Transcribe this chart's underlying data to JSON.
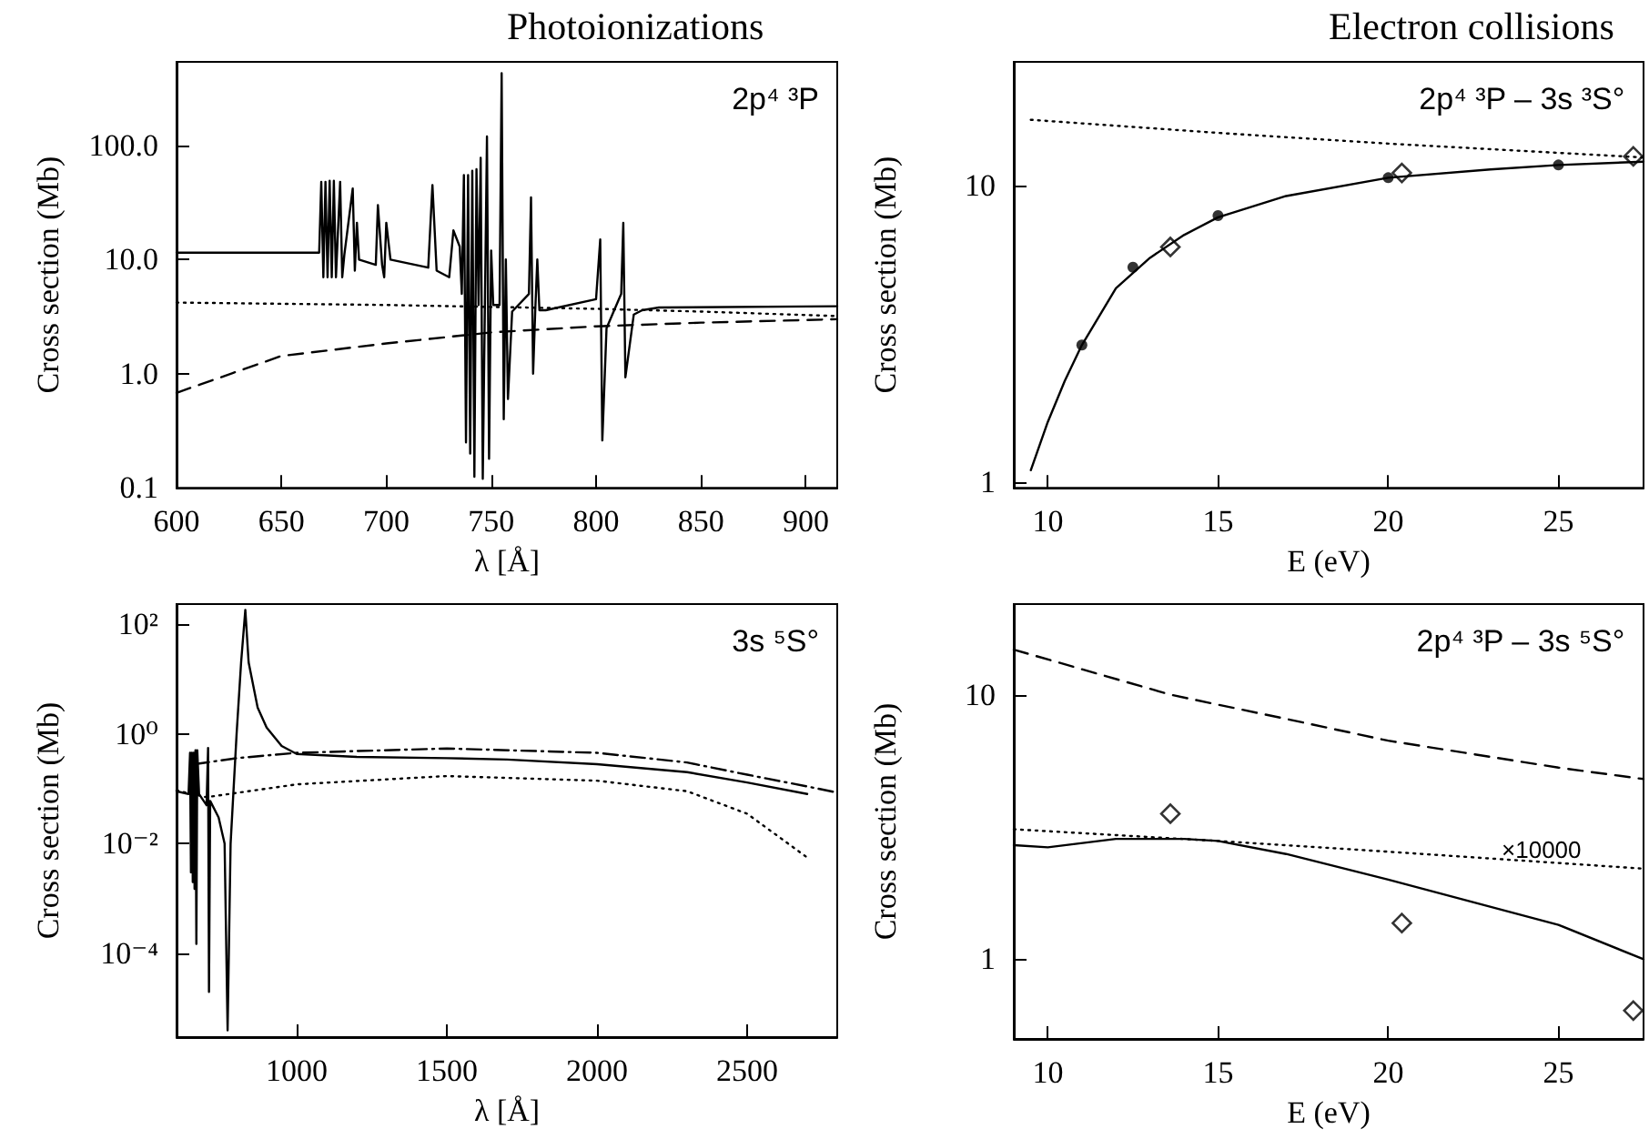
{
  "chart_data": [
    {
      "type": "line",
      "title": "Photoionizations",
      "xlabel": "λ [Å]",
      "ylabel": "Cross section (Mb)",
      "log": "y",
      "xlim": [
        600,
        915
      ],
      "xticks": [
        600,
        650,
        700,
        750,
        800,
        850,
        900
      ],
      "ylim": [
        0.1,
        540
      ],
      "yticks": [
        {
          "value": 0.1,
          "label": "0.1"
        },
        {
          "value": 1,
          "label": "1.0"
        },
        {
          "value": 10,
          "label": "10.0"
        },
        {
          "value": 100,
          "label": "100.0"
        }
      ],
      "annotations": [
        "2p⁴ ³P"
      ],
      "series": [
        {
          "color": "#000000",
          "line_style": "solid",
          "x": [
            600,
            668,
            669,
            670,
            671,
            672,
            673,
            674,
            675,
            676,
            678,
            679,
            680,
            684,
            685,
            686,
            687,
            695,
            696,
            698,
            699,
            700,
            702,
            720,
            722,
            724,
            730,
            732,
            735,
            736,
            737,
            738,
            739,
            740,
            741,
            742,
            743,
            744,
            745,
            746,
            748,
            749,
            750,
            751,
            754,
            755,
            756,
            757,
            758,
            760,
            768,
            769,
            770,
            771,
            772,
            773,
            776,
            800,
            802,
            803,
            805,
            812,
            813,
            814,
            818,
            822,
            830,
            915
          ],
          "values": [
            11.5,
            11.5,
            48,
            7,
            48,
            7,
            49,
            7,
            49,
            7,
            48,
            7,
            11,
            42,
            8,
            21,
            10,
            9,
            30,
            9,
            7,
            21,
            10,
            8.5,
            45,
            8,
            7,
            18,
            13,
            5,
            55,
            0.25,
            55,
            0.2,
            60,
            0.125,
            62,
            4,
            78,
            0.12,
            120,
            0.18,
            12,
            4,
            4,
            430,
            0.4,
            10,
            0.6,
            3.5,
            5,
            35,
            1,
            3.5,
            10,
            3.6,
            3.6,
            4.5,
            15,
            0.26,
            2.5,
            5,
            21,
            0.93,
            3.3,
            3.6,
            3.8,
            3.9
          ]
        },
        {
          "color": "#000000",
          "line_style": "dotted",
          "x": [
            600,
            700,
            800,
            850,
            915
          ],
          "values": [
            4.2,
            4.0,
            3.7,
            3.5,
            3.2
          ]
        },
        {
          "color": "#000000",
          "line_style": "dashed",
          "x": [
            600,
            650,
            700,
            750,
            800,
            850,
            915
          ],
          "values": [
            0.68,
            1.43,
            1.84,
            2.3,
            2.6,
            2.8,
            3.0
          ]
        }
      ]
    },
    {
      "type": "line",
      "title": "Electron collisions",
      "xlabel": "E (eV)",
      "ylabel": "Cross section (Mb)",
      "log": "y",
      "xlim": [
        9,
        27.5
      ],
      "xticks": [
        10,
        15,
        20,
        25
      ],
      "ylim": [
        0.96,
        26
      ],
      "yticks": [
        {
          "value": 1,
          "label": "1"
        },
        {
          "value": 10,
          "label": "10"
        }
      ],
      "annotations": [
        "2p⁴ ³P – 3s ³S°"
      ],
      "series": [
        {
          "color": "#000000",
          "line_style": "solid",
          "x": [
            9.5,
            10,
            10.5,
            11,
            12,
            13,
            14,
            15,
            17,
            20,
            23,
            25,
            27.5
          ],
          "values": [
            1.1,
            1.6,
            2.2,
            2.9,
            4.5,
            5.7,
            6.8,
            7.8,
            9.2,
            10.6,
            11.3,
            11.7,
            12.0
          ]
        },
        {
          "color": "#000000",
          "line_style": "dotted",
          "x": [
            9.5,
            15,
            20,
            27.5
          ],
          "values": [
            16.6,
            15.0,
            13.8,
            12.4
          ]
        },
        {
          "type": "scatter",
          "marker": "circle",
          "color": "#000000",
          "x": [
            11,
            12.5,
            15,
            20,
            25
          ],
          "values": [
            2.9,
            5.3,
            7.9,
            10.6,
            11.7
          ]
        },
        {
          "type": "scatter",
          "marker": "diamond",
          "color": "#000000",
          "x": [
            13.6,
            20.4,
            27.2
          ],
          "values": [
            6.2,
            11.0,
            12.5
          ]
        }
      ]
    },
    {
      "type": "line",
      "xlabel": "λ [Å]",
      "ylabel": "Cross section (Mb)",
      "log": "y",
      "xlim": [
        600,
        2800
      ],
      "xticks": [
        1000,
        1500,
        2000,
        2500
      ],
      "ylim": [
        3e-06,
        230
      ],
      "yticks": [
        {
          "value": 0.0001,
          "label": "10⁻⁴"
        },
        {
          "value": 0.01,
          "label": "10⁻²"
        },
        {
          "value": 1,
          "label": "10⁰"
        },
        {
          "value": 100,
          "label": "10²"
        }
      ],
      "annotations": [
        "3s ⁵S°"
      ],
      "series": [
        {
          "color": "#000000",
          "line_style": "solid",
          "x": [
            600,
            640,
            645,
            648,
            651,
            654,
            657,
            660,
            663,
            666,
            669,
            675,
            700,
            705,
            708,
            712,
            740,
            760,
            770,
            780,
            800,
            815,
            829,
            840,
            870,
            900,
            950,
            1000,
            1200,
            1500,
            1700,
            2000,
            2300,
            2500,
            2700
          ],
          "values": [
            0.09,
            0.08,
            0.45,
            0.003,
            0.45,
            0.002,
            0.45,
            0.0015,
            0.5,
            0.00015,
            0.5,
            0.08,
            0.05,
            0.55,
            2e-05,
            0.06,
            0.03,
            0.01,
            4e-06,
            0.01,
            1,
            20,
            180,
            20,
            3,
            1.3,
            0.6,
            0.43,
            0.38,
            0.36,
            0.34,
            0.28,
            0.2,
            0.13,
            0.08
          ]
        },
        {
          "color": "#000000",
          "line_style": "dashdot",
          "x": [
            660,
            800,
            1000,
            1500,
            2000,
            2300,
            2500,
            2700,
            2800
          ],
          "values": [
            0.28,
            0.36,
            0.45,
            0.54,
            0.45,
            0.3,
            0.18,
            0.11,
            0.085
          ]
        },
        {
          "color": "#000000",
          "line_style": "dotted",
          "x": [
            600,
            700,
            1000,
            1500,
            2000,
            2300,
            2500,
            2700
          ],
          "values": [
            0.093,
            0.07,
            0.12,
            0.17,
            0.14,
            0.09,
            0.035,
            0.0056
          ]
        }
      ]
    },
    {
      "type": "line",
      "xlabel": "E (eV)",
      "ylabel": "Cross section (Mb)",
      "log": "y",
      "xlim": [
        9,
        27.5
      ],
      "xticks": [
        10,
        15,
        20,
        25
      ],
      "ylim": [
        0.5,
        22
      ],
      "yticks": [
        {
          "value": 1,
          "label": "1"
        },
        {
          "value": 10,
          "label": "10"
        }
      ],
      "annotations": [
        "2p⁴ ³P – 3s ⁵S°",
        {
          "text": "×10000",
          "x": 24.5,
          "y": 2.34
        }
      ],
      "series": [
        {
          "color": "#000000",
          "line_style": "dashed",
          "x": [
            9,
            13.6,
            17,
            20,
            25,
            27.5
          ],
          "values": [
            14.8,
            10,
            8.1,
            6.7,
            5.3,
            4.8
          ]
        },
        {
          "color": "#000000",
          "line_style": "dotted",
          "x": [
            9,
            15,
            20,
            27.5
          ],
          "values": [
            3.1,
            2.8,
            2.55,
            2.2
          ]
        },
        {
          "color": "#000000",
          "line_style": "solid",
          "x": [
            9,
            10,
            12,
            14,
            15,
            17,
            20,
            25,
            27.5
          ],
          "values": [
            2.7,
            2.65,
            2.85,
            2.85,
            2.8,
            2.5,
            2.0,
            1.35,
            1.0
          ]
        },
        {
          "type": "scatter",
          "marker": "diamond",
          "color": "#000000",
          "x": [
            13.6,
            20.4,
            27.2
          ],
          "values": [
            3.55,
            1.37,
            0.64
          ]
        }
      ]
    }
  ]
}
